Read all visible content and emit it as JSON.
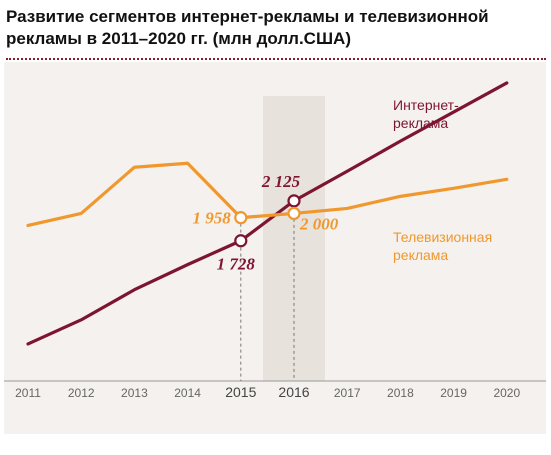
{
  "title": {
    "line1": "Развитие сегментов интернет-рекламы и телевизионной",
    "line2": "рекламы в 2011–2020 гг. (млн долл.США)"
  },
  "colors": {
    "internet": "#7d1530",
    "tv": "#f0982e",
    "highlight_band": "#e8e2dd",
    "axis": "#999999"
  },
  "chart_data": {
    "type": "line",
    "title": "Развитие сегментов интернет-рекламы и телевизионной рекламы в 2011–2020 гг. (млн долл.США)",
    "xlabel": "",
    "ylabel": "",
    "categories": [
      "2011",
      "2012",
      "2013",
      "2014",
      "2015",
      "2016",
      "2017",
      "2018",
      "2019",
      "2020"
    ],
    "highlight_category": "2016",
    "emphasized_ticks": [
      "2015",
      "2016"
    ],
    "ylim": [
      550,
      3100
    ],
    "grid": false,
    "series": [
      {
        "key": "internet",
        "name_lines": [
          "Интернет-",
          "реклама"
        ],
        "values": [
          700,
          940,
          1240,
          1490,
          1728,
          2125,
          2420,
          2720,
          3010,
          3300
        ]
      },
      {
        "key": "tv",
        "name_lines": [
          "Телевизионная",
          "реклама"
        ],
        "values": [
          1880,
          2000,
          2460,
          2500,
          1958,
          2000,
          2050,
          2170,
          2250,
          2340
        ]
      }
    ],
    "annotations": [
      {
        "series": "tv",
        "index": 4,
        "text": "1 958",
        "side": "left"
      },
      {
        "series": "internet",
        "index": 4,
        "text": "1 728",
        "side": "below"
      },
      {
        "series": "internet",
        "index": 5,
        "text": "2 125",
        "side": "above"
      },
      {
        "series": "tv",
        "index": 5,
        "text": "2 000",
        "side": "right"
      }
    ]
  }
}
